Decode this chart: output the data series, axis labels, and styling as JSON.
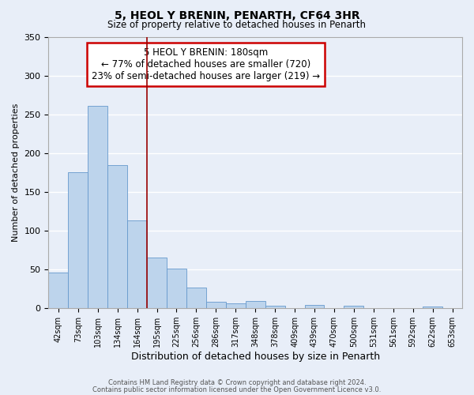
{
  "title": "5, HEOL Y BRENIN, PENARTH, CF64 3HR",
  "subtitle": "Size of property relative to detached houses in Penarth",
  "xlabel": "Distribution of detached houses by size in Penarth",
  "ylabel": "Number of detached properties",
  "bar_color": "#bdd4ec",
  "bar_edge_color": "#6699cc",
  "background_color": "#e8eef8",
  "grid_color": "#ffffff",
  "bin_labels": [
    "42sqm",
    "73sqm",
    "103sqm",
    "134sqm",
    "164sqm",
    "195sqm",
    "225sqm",
    "256sqm",
    "286sqm",
    "317sqm",
    "348sqm",
    "378sqm",
    "409sqm",
    "439sqm",
    "470sqm",
    "500sqm",
    "531sqm",
    "561sqm",
    "592sqm",
    "622sqm",
    "653sqm"
  ],
  "bar_values": [
    46,
    175,
    261,
    184,
    113,
    65,
    51,
    26,
    8,
    6,
    9,
    3,
    0,
    4,
    0,
    3,
    0,
    0,
    0,
    2,
    0
  ],
  "vline_x": 4.5,
  "vline_color": "#990000",
  "annotation_title": "5 HEOL Y BRENIN: 180sqm",
  "annotation_line1": "← 77% of detached houses are smaller (720)",
  "annotation_line2": "23% of semi-detached houses are larger (219) →",
  "annotation_box_color": "#ffffff",
  "annotation_box_edge": "#cc0000",
  "ylim": [
    0,
    350
  ],
  "footer1": "Contains HM Land Registry data © Crown copyright and database right 2024.",
  "footer2": "Contains public sector information licensed under the Open Government Licence v3.0."
}
